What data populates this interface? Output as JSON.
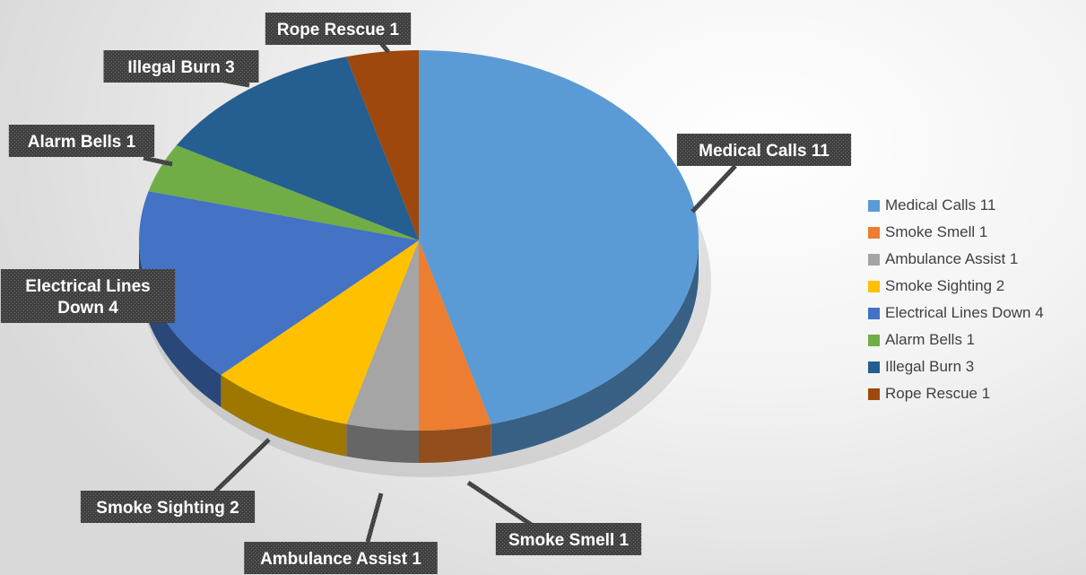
{
  "chart_data": {
    "type": "pie",
    "style": "3d-exploded-labels",
    "legend_position": "right",
    "series": [
      {
        "name": "Medical Calls",
        "value": 11,
        "label": "Medical Calls 11",
        "color": "#5B9BD5"
      },
      {
        "name": "Smoke Smell",
        "value": 1,
        "label": "Smoke Smell 1",
        "color": "#ED7D31"
      },
      {
        "name": "Ambulance Assist",
        "value": 1,
        "label": "Ambulance Assist 1",
        "color": "#A5A5A5"
      },
      {
        "name": "Smoke Sighting",
        "value": 2,
        "label": "Smoke Sighting 2",
        "color": "#FFC000"
      },
      {
        "name": "Electrical Lines Down",
        "value": 4,
        "label": "Electrical Lines Down 4",
        "label_lines": [
          "Electrical Lines",
          "Down 4"
        ],
        "color": "#4472C4"
      },
      {
        "name": "Alarm Bells",
        "value": 1,
        "label": "Alarm Bells 1",
        "color": "#70AD47"
      },
      {
        "name": "Illegal Burn",
        "value": 3,
        "label": "Illegal Burn 3",
        "color": "#255E91"
      },
      {
        "name": "Rope Rescue",
        "value": 1,
        "label": "Rope Rescue 1",
        "color": "#9E480E"
      }
    ]
  },
  "colors": {
    "label_bg": "#404040",
    "label_text": "#ffffff",
    "legend_text": "#404040",
    "leader_line": "#404040"
  }
}
